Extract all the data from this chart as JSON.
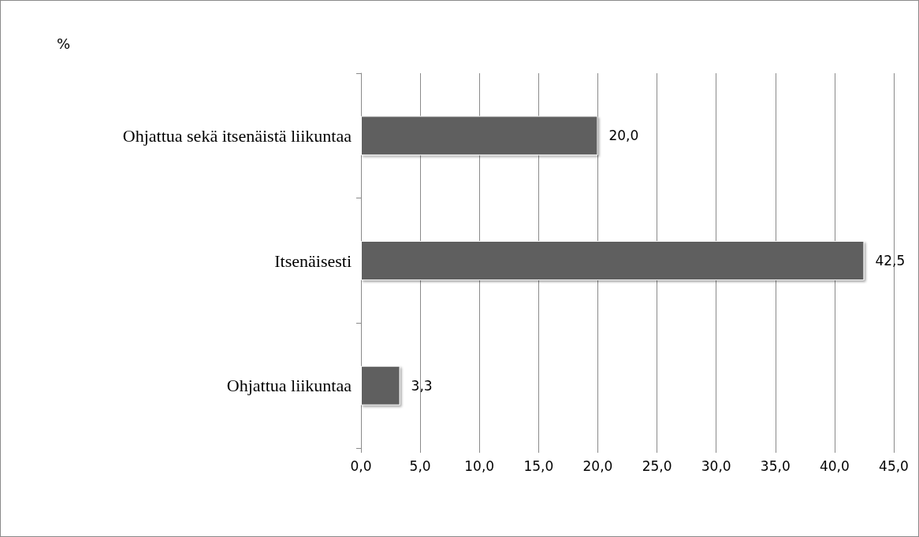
{
  "chart_data": {
    "type": "bar",
    "orientation": "horizontal",
    "title": "%",
    "categories": [
      "Ohjattua sekä itsenäistä liikuntaa",
      "Itsenäisesti",
      "Ohjattua liikuntaa"
    ],
    "values": [
      20.0,
      42.5,
      3.3
    ],
    "color": "#5f5f5f",
    "value_labels": [
      "20,0",
      "42,5",
      "3,3"
    ],
    "xlim": [
      0,
      45
    ],
    "xticks": [
      {
        "value": 0,
        "label": "0,0"
      },
      {
        "value": 5,
        "label": "5,0"
      },
      {
        "value": 10,
        "label": "10,0"
      },
      {
        "value": 15,
        "label": "15,0"
      },
      {
        "value": 20,
        "label": "20,0"
      },
      {
        "value": 25,
        "label": "25,0"
      },
      {
        "value": 30,
        "label": "30,0"
      },
      {
        "value": 35,
        "label": "35,0"
      },
      {
        "value": 40,
        "label": "40,0"
      },
      {
        "value": 45,
        "label": "45,0"
      }
    ],
    "grid": "x"
  }
}
